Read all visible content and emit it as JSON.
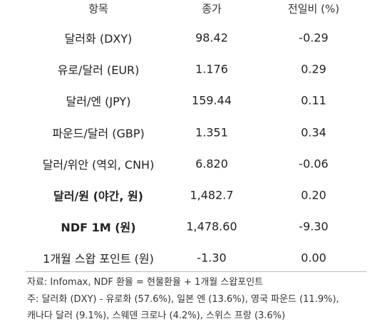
{
  "table": {
    "header": [
      "항목",
      "종가",
      "전일비 (%)"
    ],
    "rows": [
      [
        "달러화 (DXY)",
        "98.42",
        "-0.29"
      ],
      [
        "유로/달러 (EUR)",
        "1.176",
        "0.29"
      ],
      [
        "달러/엔 (JPY)",
        "159.44",
        "0.11"
      ],
      [
        "파운드/달러 (GBP)",
        "1.351",
        "0.34"
      ],
      [
        "달러/위안 (역외, CNH)",
        "6.820",
        "-0.06"
      ],
      [
        "달러/원 (야간, 원)",
        "1,482.7",
        "0.20"
      ],
      [
        "NDF 1M (원)",
        "1,478.60",
        "-9.30"
      ],
      [
        "1개월 스왑 포인트 (원)",
        "-1.30",
        "0.00"
      ]
    ]
  },
  "footnotes": [
    "자료: Infomax, NDF 환율 = 현물환율 + 1개월 스왑포인트",
    "주: 달러화 (DXY) - 유로화 (57.6%), 일본 엔 (13.6%), 영국 파운드 (11.9%),",
    "캐나다 달러 (9.1%), 스웨덴 크로나 (4.2%), 스위스 프랑 (3.6%)"
  ]
}
